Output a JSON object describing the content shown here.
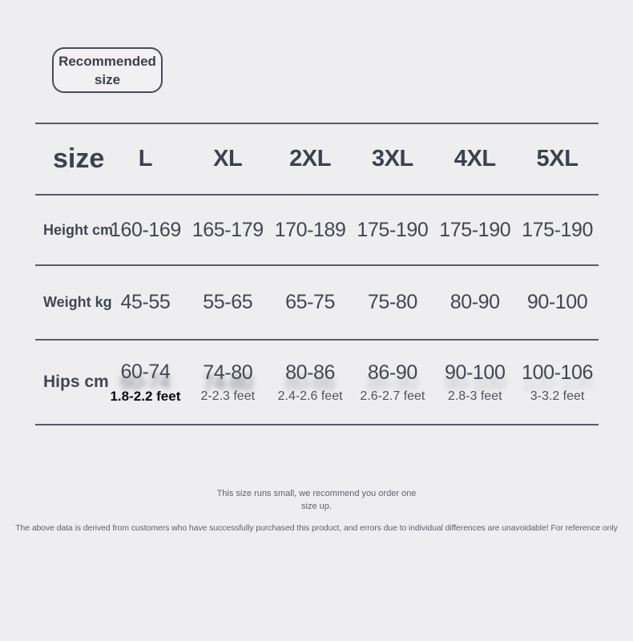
{
  "badge": {
    "label": "Recommended size"
  },
  "chart_data": {
    "type": "table",
    "title": "Recommended size",
    "corner_label": "size",
    "columns": [
      "L",
      "XL",
      "2XL",
      "3XL",
      "4XL",
      "5XL"
    ],
    "rows": [
      {
        "label": "Height cm",
        "values": [
          "160-169",
          "165-179",
          "170-189",
          "175-190",
          "175-190",
          "175-190"
        ]
      },
      {
        "label": "Weight kg",
        "values": [
          "45-55",
          "55-65",
          "65-75",
          "75-80",
          "80-90",
          "90-100"
        ]
      },
      {
        "label": "Hips cm",
        "values": [
          "60-74",
          "74-80",
          "80-86",
          "86-90",
          "90-100",
          "100-106"
        ],
        "sub_values": [
          "1.8-2.2 feet",
          "2-2.3 feet",
          "2.4-2.6 feet",
          "2.6-2.7 feet",
          "2.8-3 feet",
          "3-3.2 feet"
        ]
      }
    ]
  },
  "notes": {
    "sizing_note": "This size runs small, we recommend you order one size up.",
    "disclaimer": "The above data is derived from customers who have successfully purchased this product, and errors due to individual differences are unavoidable! For reference only"
  },
  "colors": {
    "background": "#eeedf0",
    "line": "#575c64",
    "text_dark": "#3c414b",
    "muted_text": "#5e636b",
    "highlight_text": "#0b0c0f"
  }
}
